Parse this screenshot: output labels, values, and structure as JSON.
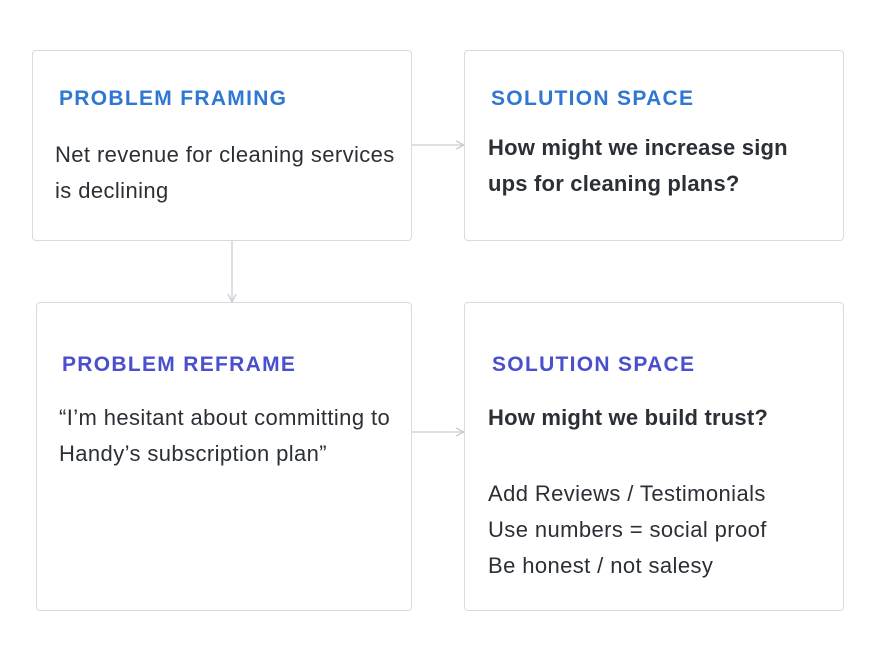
{
  "colors": {
    "heading_blue": "#2f77d1",
    "heading_indigo": "#4a4fcc",
    "text": "#2b2f36",
    "card_border": "#d7dbe0",
    "connector": "#c9ced4"
  },
  "cards": {
    "problem_framing": {
      "heading": "PROBLEM FRAMING",
      "body": "Net revenue for cleaning services is declining"
    },
    "solution_space_1": {
      "heading": "SOLUTION SPACE",
      "body": "How might we increase sign ups for cleaning plans?"
    },
    "problem_reframe": {
      "heading": "PROBLEM REFRAME",
      "body": "“I’m hesitant about committing to Handy’s subscription plan”"
    },
    "solution_space_2": {
      "heading": "SOLUTION SPACE",
      "question": "How might we build trust?",
      "ideas": [
        "Add Reviews / Testimonials",
        "Use numbers = social proof",
        "Be honest / not salesy"
      ]
    }
  }
}
